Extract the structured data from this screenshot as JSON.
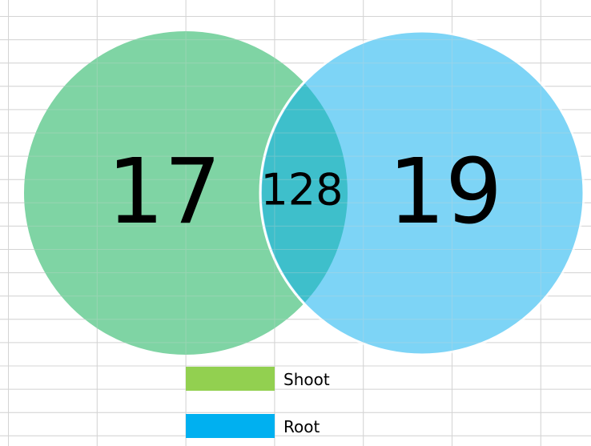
{
  "sets": [
    {
      "name": "Shoot",
      "color": "#92d050",
      "only": 17
    },
    {
      "name": "Root",
      "color": "#00b0f0",
      "only": 19
    }
  ],
  "intersection": 128
}
